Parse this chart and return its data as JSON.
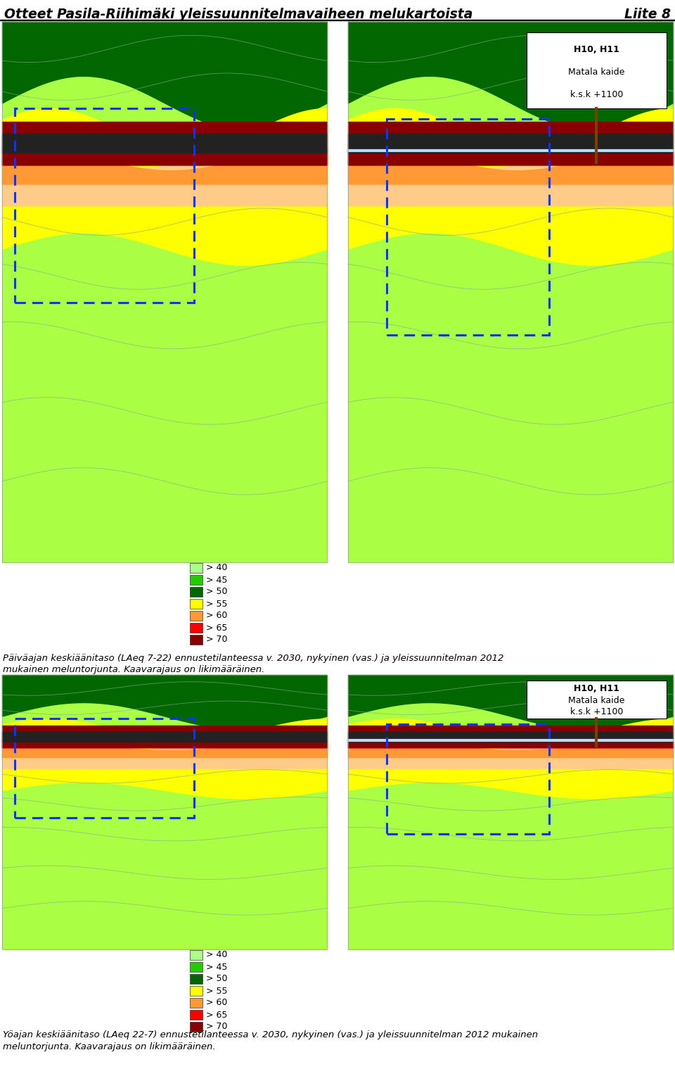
{
  "title": "Otteet Pasila-Riihimäki yleissuunnitelmavaiheen melukartoista",
  "title_right": "Liite 8",
  "title_fontsize": 13.5,
  "caption_top_line1": "Päiväajan keskiäänitaso (LAeq 7-22) ennustetilanteessa v. 2030, nykyinen (vas.) ja yleissuunnitelman 2012",
  "caption_top_line2": "mukainen meluntorjunta. Kaavarajaus on likimääräinen.",
  "caption_bot_line1": "Yöajan keskiäänitaso (LAeq 22-7) ennustetilanteessa v. 2030, nykyinen (vas.) ja yleissuunnitelman 2012 mukainen",
  "caption_bot_line2": "meluntorjunta. Kaavarajaus on likimääräinen.",
  "legend_labels": [
    "> 40",
    "> 45",
    "> 50",
    "> 55",
    "> 60",
    "> 65",
    "> 70"
  ],
  "legend_colors": [
    "#aaff88",
    "#22cc00",
    "#006600",
    "#ffff00",
    "#ff9933",
    "#ff0000",
    "#880000"
  ],
  "note_text_line1": "H10, H11",
  "note_text_line2": "Matala kaide",
  "note_text_line3": "k.s.k +1100",
  "bg_color": "#ffffff",
  "color_lt_green": "#aaff44",
  "color_med_green": "#22cc00",
  "color_dk_green": "#006600",
  "color_yellow": "#ffff00",
  "color_orange": "#ff9933",
  "color_lt_orange": "#ffcc88",
  "color_red": "#ff0000",
  "color_dk_red": "#880000",
  "color_rail": "#222222",
  "color_contour": "#555555",
  "color_contour2": "#88aa88"
}
